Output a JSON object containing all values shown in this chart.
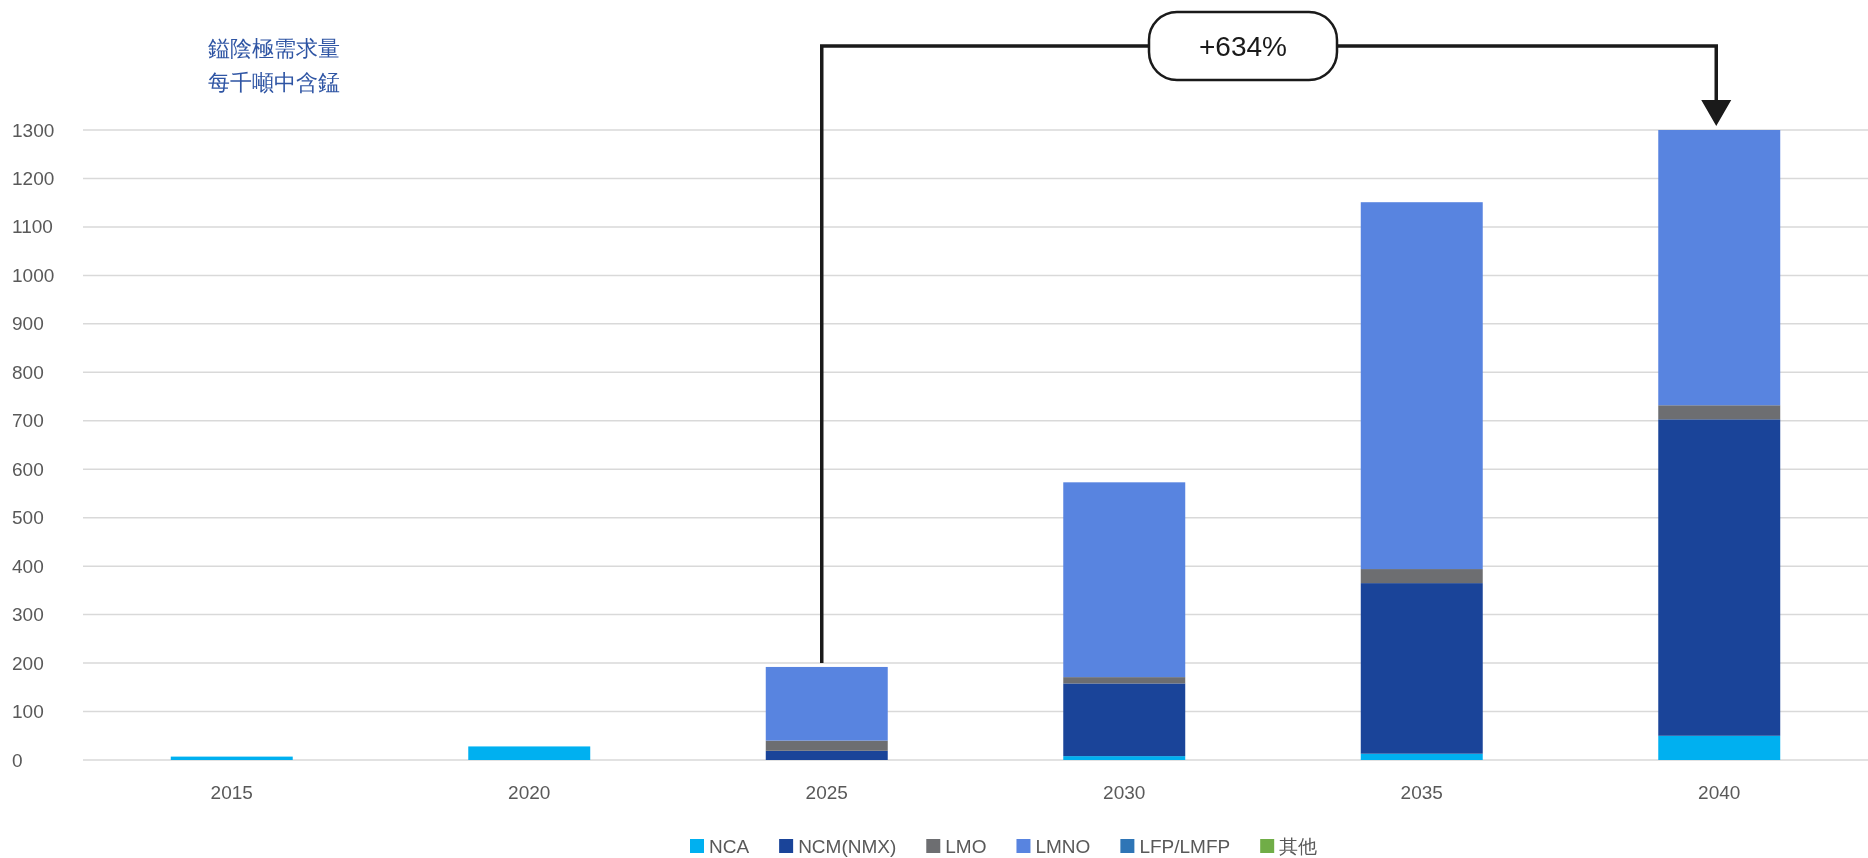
{
  "chart_data": {
    "type": "bar",
    "title": "鎰陰極需求量",
    "subtitle": "每千噸中含錳",
    "categories": [
      "2015",
      "2020",
      "2025",
      "2030",
      "2035",
      "2040"
    ],
    "stacked": true,
    "series": [
      {
        "name": "NCA",
        "color": "#00b0f0",
        "values": [
          7,
          28,
          0,
          8,
          13,
          50
        ]
      },
      {
        "name": "NCM(NMX)",
        "color": "#1a4499",
        "values": [
          0,
          0,
          19,
          150,
          352,
          653
        ]
      },
      {
        "name": "LMO",
        "color": "#6d6e71",
        "values": [
          0,
          0,
          21,
          13,
          29,
          29
        ]
      },
      {
        "name": "LMNO",
        "color": "#5884e0",
        "values": [
          0,
          0,
          152,
          402,
          757,
          568
        ]
      },
      {
        "name": "LFP/LMFP",
        "color": "#2e75b6",
        "values": [
          0,
          0,
          0,
          0,
          0,
          0
        ]
      },
      {
        "name": "其他",
        "color": "#70ad47",
        "values": [
          0,
          0,
          0,
          0,
          0,
          0
        ]
      }
    ],
    "ylim": [
      0,
      1300
    ],
    "yticks": [
      0,
      100,
      200,
      300,
      400,
      500,
      600,
      700,
      800,
      900,
      1000,
      1100,
      1200,
      1300
    ],
    "grid": "y",
    "legend": "bottom",
    "annotations": [
      "+634%"
    ]
  }
}
